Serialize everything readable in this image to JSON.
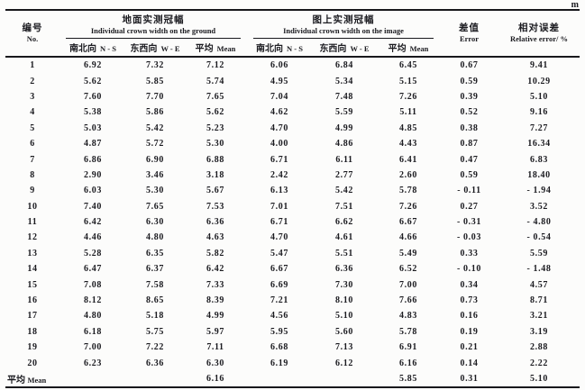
{
  "unit_label": "m",
  "colors": {
    "text": "#1b1b20",
    "line": "#18181c",
    "background": "#fcfcfb"
  },
  "table": {
    "col1_header": {
      "zh": "编号",
      "en": "No."
    },
    "groups": [
      {
        "zh": "地面实测冠幅",
        "en": "Individual crown width on the ground"
      },
      {
        "zh": "图上实测冠幅",
        "en": "Individual crown width on the image"
      }
    ],
    "sub_headers": [
      {
        "zh": "南北向",
        "en": "N - S"
      },
      {
        "zh": "东西向",
        "en": "W - E"
      },
      {
        "zh": "平均",
        "en": "Mean"
      },
      {
        "zh": "南北向",
        "en": "N - S"
      },
      {
        "zh": "东西向",
        "en": "W - E"
      },
      {
        "zh": "平均",
        "en": "Mean"
      }
    ],
    "error_header": {
      "zh": "差值",
      "en": "Error"
    },
    "relative_error_header": {
      "zh": "相对误差",
      "en": "Relative error/ %"
    },
    "rows": [
      [
        "1",
        "6.92",
        "7.32",
        "7.12",
        "6.06",
        "6.84",
        "6.45",
        "0.67",
        "9.41"
      ],
      [
        "2",
        "5.62",
        "5.85",
        "5.74",
        "4.95",
        "5.34",
        "5.15",
        "0.59",
        "10.29"
      ],
      [
        "3",
        "7.60",
        "7.70",
        "7.65",
        "7.04",
        "7.48",
        "7.26",
        "0.39",
        "5.10"
      ],
      [
        "4",
        "5.38",
        "5.86",
        "5.62",
        "4.62",
        "5.59",
        "5.11",
        "0.52",
        "9.16"
      ],
      [
        "5",
        "5.03",
        "5.42",
        "5.23",
        "4.70",
        "4.99",
        "4.85",
        "0.38",
        "7.27"
      ],
      [
        "6",
        "4.87",
        "5.72",
        "5.30",
        "4.00",
        "4.86",
        "4.43",
        "0.87",
        "16.34"
      ],
      [
        "7",
        "6.86",
        "6.90",
        "6.88",
        "6.71",
        "6.11",
        "6.41",
        "0.47",
        "6.83"
      ],
      [
        "8",
        "2.90",
        "3.46",
        "3.18",
        "2.42",
        "2.77",
        "2.60",
        "0.59",
        "18.40"
      ],
      [
        "9",
        "6.03",
        "5.30",
        "5.67",
        "6.13",
        "5.42",
        "5.78",
        "- 0.11",
        "- 1.94"
      ],
      [
        "10",
        "7.40",
        "7.65",
        "7.53",
        "7.01",
        "7.51",
        "7.26",
        "0.27",
        "3.52"
      ],
      [
        "11",
        "6.42",
        "6.30",
        "6.36",
        "6.71",
        "6.62",
        "6.67",
        "- 0.31",
        "- 4.80"
      ],
      [
        "12",
        "4.46",
        "4.80",
        "4.63",
        "4.70",
        "4.61",
        "4.66",
        "- 0.03",
        "- 0.54"
      ],
      [
        "13",
        "5.28",
        "6.35",
        "5.82",
        "5.47",
        "5.51",
        "5.49",
        "0.33",
        "5.59"
      ],
      [
        "14",
        "6.47",
        "6.37",
        "6.42",
        "6.67",
        "6.36",
        "6.52",
        "- 0.10",
        "- 1.48"
      ],
      [
        "15",
        "7.08",
        "7.58",
        "7.33",
        "6.69",
        "7.30",
        "7.00",
        "0.34",
        "4.57"
      ],
      [
        "16",
        "8.12",
        "8.65",
        "8.39",
        "7.21",
        "8.10",
        "7.66",
        "0.73",
        "8.71"
      ],
      [
        "17",
        "4.80",
        "5.18",
        "4.99",
        "4.56",
        "5.10",
        "4.83",
        "0.16",
        "3.21"
      ],
      [
        "18",
        "6.18",
        "5.75",
        "5.97",
        "5.95",
        "5.60",
        "5.78",
        "0.19",
        "3.19"
      ],
      [
        "19",
        "7.00",
        "7.22",
        "7.11",
        "6.68",
        "7.13",
        "6.91",
        "0.21",
        "2.88"
      ],
      [
        "20",
        "6.23",
        "6.36",
        "6.30",
        "6.19",
        "6.12",
        "6.16",
        "0.14",
        "2.22"
      ]
    ],
    "mean_row": {
      "label_zh": "平均",
      "label_en": "Mean",
      "ground_mean": "6.16",
      "image_mean": "5.85",
      "error": "0.31",
      "relative_error": "5.10"
    }
  }
}
